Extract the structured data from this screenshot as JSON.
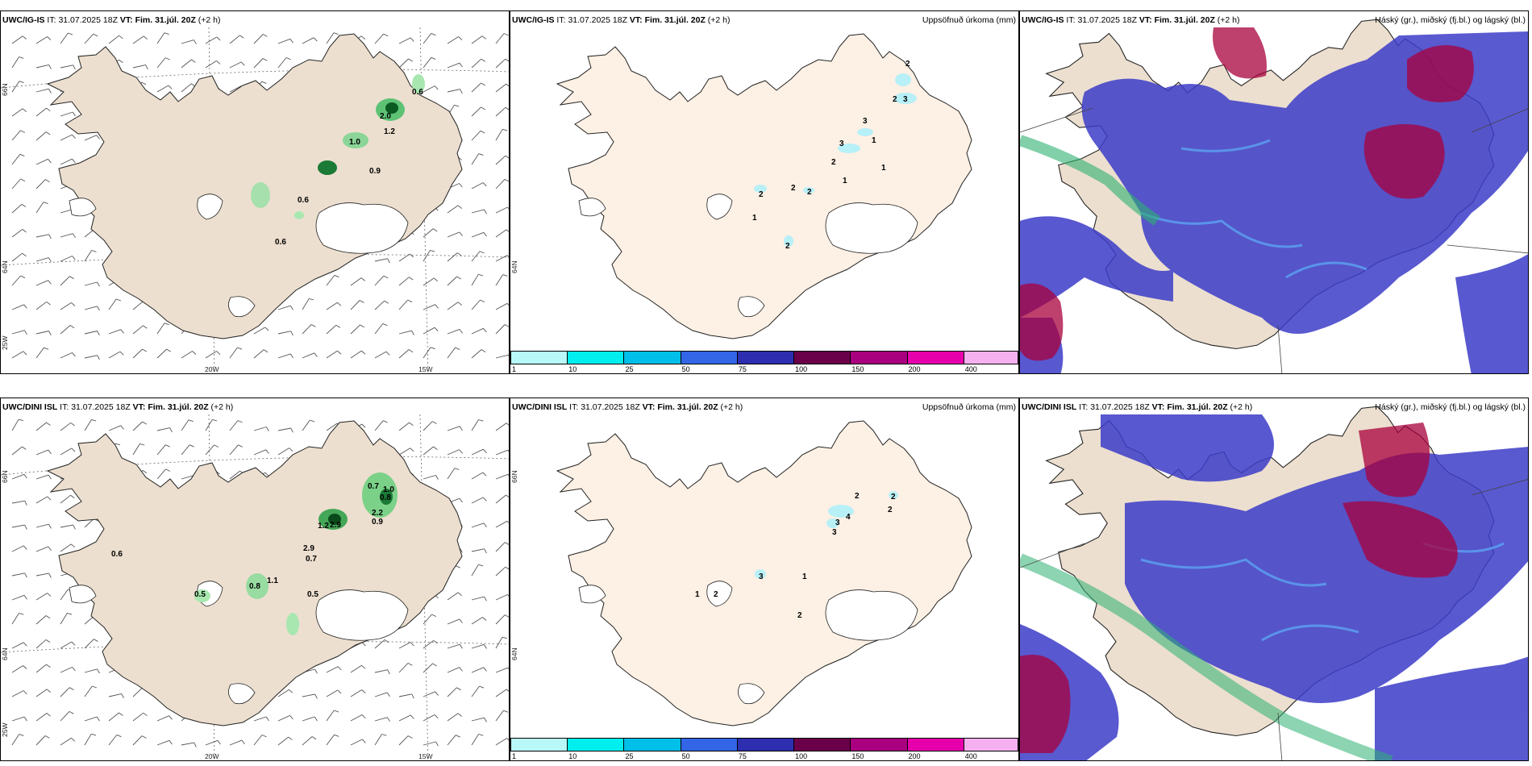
{
  "panels": [
    {
      "model": "UWC/IG-IS",
      "it_label": "IT:",
      "it": "31.07.2025 18Z",
      "vt_label": "VT:",
      "vt": "Fim. 31.júl. 20Z",
      "lead": "(+2 h)"
    },
    {
      "model": "UWC/IG-IS",
      "it_label": "IT:",
      "it": "31.07.2025 18Z",
      "vt_label": "VT:",
      "vt": "Fim. 31.júl. 20Z",
      "lead": "(+2 h)",
      "right_title": "Uppsöfnuð úrkoma (mm)"
    },
    {
      "model": "UWC/IG-IS",
      "it_label": "IT:",
      "it": "31.07.2025 18Z",
      "vt_label": "VT:",
      "vt": "Fim. 31.júl. 20Z",
      "lead": "(+2 h)",
      "right_title": "Háský (gr.), miðský (fj.bl.) og lágský (bl.)"
    },
    {
      "model": "UWC/DINI ISL",
      "it_label": "IT:",
      "it": "31.07.2025 18Z",
      "vt_label": "VT:",
      "vt": "Fim. 31.júl. 20Z",
      "lead": "(+2 h)"
    },
    {
      "model": "UWC/DINI ISL",
      "it_label": "IT:",
      "it": "31.07.2025 18Z",
      "vt_label": "VT:",
      "vt": "Fim. 31.júl. 20Z",
      "lead": "(+2 h)",
      "right_title": "Uppsöfnuð úrkoma (mm)"
    },
    {
      "model": "UWC/DINI ISL",
      "it_label": "IT:",
      "it": "31.07.2025 18Z",
      "vt_label": "VT:",
      "vt": "Fim. 31.júl. 20Z",
      "lead": "(+2 h)",
      "right_title": "Háský (gr.), miðský (fj.bl.) og lágský (bl.)"
    }
  ],
  "gridlabels": {
    "lat66": "66N",
    "lat64": "64N",
    "lon25": "25W",
    "lon20": "20W",
    "lon15": "15W"
  },
  "precip_colorbar": {
    "ticks": [
      "1",
      "10",
      "25",
      "50",
      "75",
      "100",
      "150",
      "200",
      "400"
    ],
    "colors": [
      "#b8f8f8",
      "#00eeee",
      "#00bfe8",
      "#3366e6",
      "#2e2eb0",
      "#6a004a",
      "#a8007e",
      "#e600ac",
      "#f5b0f0"
    ]
  },
  "wind_labels_top": [
    "0.6",
    "2.0",
    "1.2",
    "1.0",
    "0.9",
    "0.6",
    "0.6"
  ],
  "wind_labels_bottom": [
    "0.7",
    "1.0",
    "0.8",
    "2.2",
    "0.9",
    "1.2",
    "2.9",
    "2.9",
    "0.7",
    "0.6",
    "1.1",
    "0.8",
    "0.5",
    "0.5"
  ],
  "precip_labels_top": [
    "2",
    "2",
    "3",
    "3",
    "3",
    "1",
    "2",
    "1",
    "1",
    "2",
    "2",
    "2",
    "1",
    "2"
  ],
  "precip_labels_bottom": [
    "2",
    "2",
    "2",
    "3",
    "4",
    "3",
    "1",
    "3",
    "1",
    "2",
    "2"
  ],
  "colors": {
    "land": "#ecdfcf",
    "land_precip": "#fdf0e4",
    "low_cloud": "#3c3cc8",
    "mid_cloud": "#5aa0f0",
    "high_cloud": "#a8003c",
    "green": "#1a9a3a"
  }
}
